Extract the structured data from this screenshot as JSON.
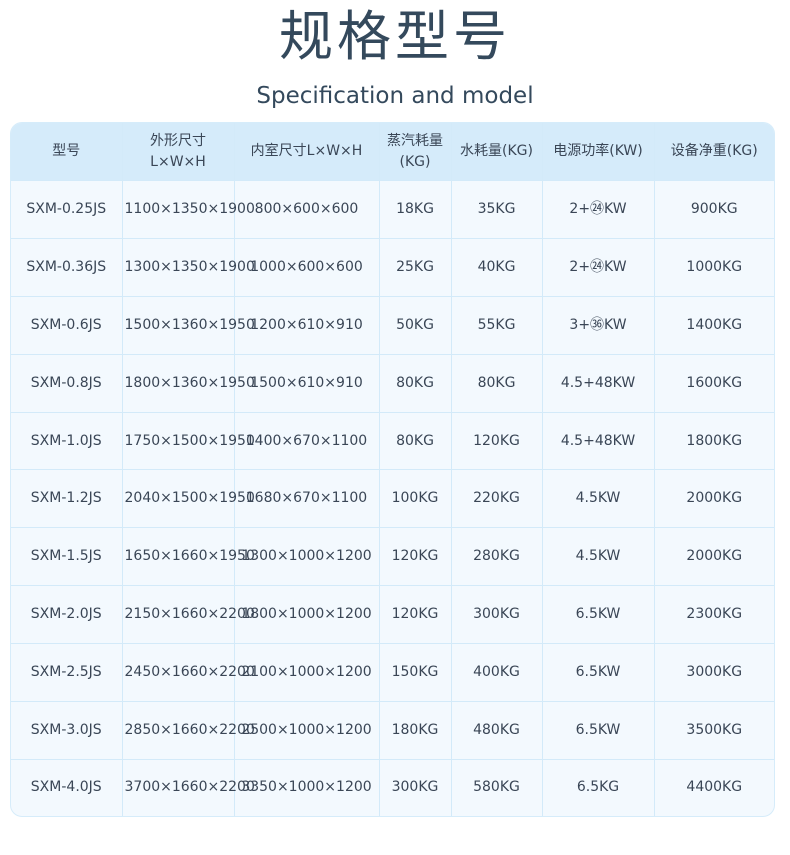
{
  "title": "规格型号",
  "subtitle": "Specification and model",
  "table": {
    "headers": [
      "型号",
      "外形尺寸L×W×H",
      "内室尺寸L×W×H",
      "蒸汽耗量(KG)",
      "水耗量(KG)",
      "电源功率(KW)",
      "设备净重(KG)"
    ],
    "rows": [
      [
        "SXM-0.25JS",
        "1100×1350×1900",
        "800×600×600",
        "18KG",
        "35KG",
        "2+㉔KW",
        "900KG"
      ],
      [
        "SXM-0.36JS",
        "1300×1350×1900",
        "1000×600×600",
        "25KG",
        "40KG",
        "2+㉔KW",
        "1000KG"
      ],
      [
        "SXM-0.6JS",
        "1500×1360×1950",
        "1200×610×910",
        "50KG",
        "55KG",
        "3+㊱KW",
        "1400KG"
      ],
      [
        "SXM-0.8JS",
        "1800×1360×1950",
        "1500×610×910",
        "80KG",
        "80KG",
        "4.5+48KW",
        "1600KG"
      ],
      [
        "SXM-1.0JS",
        "1750×1500×1950",
        "1400×670×1100",
        "80KG",
        "120KG",
        "4.5+48KW",
        "1800KG"
      ],
      [
        "SXM-1.2JS",
        "2040×1500×1950",
        "1680×670×1100",
        "100KG",
        "220KG",
        "4.5KW",
        "2000KG"
      ],
      [
        "SXM-1.5JS",
        "1650×1660×1950",
        "1300×1000×1200",
        "120KG",
        "280KG",
        "4.5KW",
        "2000KG"
      ],
      [
        "SXM-2.0JS",
        "2150×1660×2200",
        "1800×1000×1200",
        "120KG",
        "300KG",
        "6.5KW",
        "2300KG"
      ],
      [
        "SXM-2.5JS",
        "2450×1660×2200",
        "2100×1000×1200",
        "150KG",
        "400KG",
        "6.5KW",
        "3000KG"
      ],
      [
        "SXM-3.0JS",
        "2850×1660×2200",
        "2500×1000×1200",
        "180KG",
        "480KG",
        "6.5KW",
        "3500KG"
      ],
      [
        "SXM-4.0JS",
        "3700×1660×2200",
        "3350×1000×1200",
        "300KG",
        "580KG",
        "6.5KG",
        "4400KG"
      ]
    ]
  }
}
